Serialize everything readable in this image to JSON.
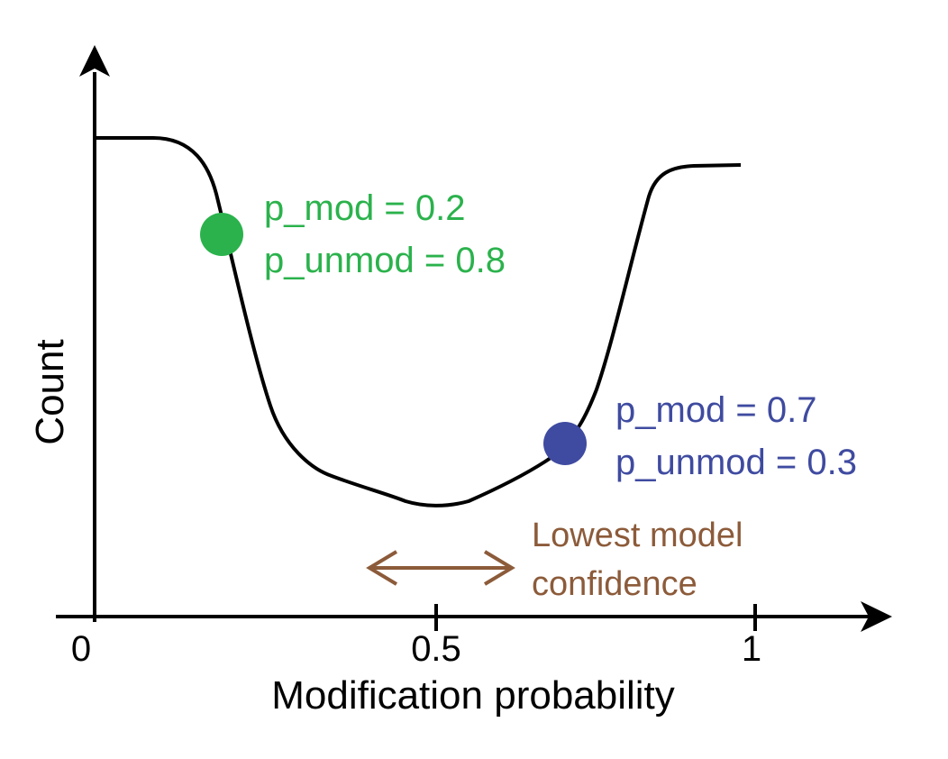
{
  "axes": {
    "x_label": "Modification probability",
    "y_label": "Count",
    "x_ticks": [
      "0",
      "0.5",
      "1"
    ]
  },
  "annotations": {
    "green_point": {
      "line1": "p_mod = 0.2",
      "line2": "p_unmod = 0.8",
      "color": "#2bb24c"
    },
    "blue_point": {
      "line1": "p_mod = 0.7",
      "line2": "p_unmod = 0.3",
      "color": "#3f4ba0"
    },
    "low_confidence": {
      "line1": "Lowest model",
      "line2": "confidence",
      "color": "#8c5b3a"
    }
  }
}
